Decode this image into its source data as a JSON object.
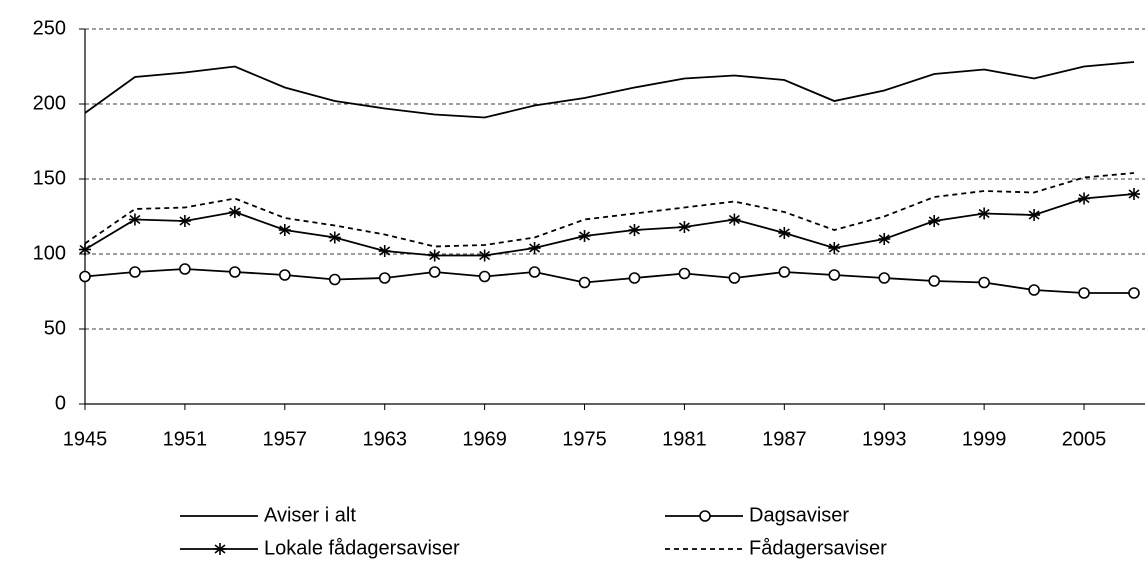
{
  "chart_data": {
    "type": "line",
    "x": [
      1945,
      1948,
      1951,
      1954,
      1957,
      1960,
      1963,
      1966,
      1969,
      1972,
      1975,
      1978,
      1981,
      1984,
      1987,
      1990,
      1993,
      1996,
      1999,
      2002,
      2005,
      2008
    ],
    "xlim": [
      1945,
      2008
    ],
    "xticks": [
      1945,
      1951,
      1957,
      1963,
      1969,
      1975,
      1981,
      1987,
      1993,
      1999,
      2005
    ],
    "ylim": [
      0,
      250
    ],
    "yticks": [
      0,
      50,
      100,
      150,
      200,
      250
    ],
    "grid": true,
    "legend": "bottom",
    "series": [
      {
        "name": "Aviser i alt",
        "color": "#000000",
        "linestyle": "solid",
        "marker": "none",
        "values": [
          194,
          218,
          221,
          225,
          211,
          202,
          197,
          193,
          191,
          199,
          204,
          211,
          217,
          219,
          216,
          202,
          209,
          220,
          223,
          217,
          225,
          228
        ]
      },
      {
        "name": "Dagsaviser",
        "color": "#000000",
        "linestyle": "solid",
        "marker": "circle",
        "values": [
          85,
          88,
          90,
          88,
          86,
          83,
          84,
          88,
          85,
          88,
          81,
          84,
          87,
          84,
          88,
          86,
          84,
          82,
          81,
          76,
          74,
          74
        ]
      },
      {
        "name": "Lokale fådagersaviser",
        "color": "#000000",
        "linestyle": "solid",
        "marker": "asterisk",
        "values": [
          103,
          123,
          122,
          128,
          116,
          111,
          102,
          99,
          99,
          104,
          112,
          116,
          118,
          123,
          114,
          104,
          110,
          122,
          127,
          126,
          137,
          140
        ]
      },
      {
        "name": "Fådagersaviser",
        "color": "#000000",
        "linestyle": "dashed",
        "marker": "none",
        "values": [
          107,
          130,
          131,
          137,
          124,
          119,
          113,
          105,
          106,
          111,
          123,
          127,
          131,
          135,
          128,
          116,
          125,
          138,
          142,
          141,
          151,
          154
        ]
      }
    ]
  }
}
